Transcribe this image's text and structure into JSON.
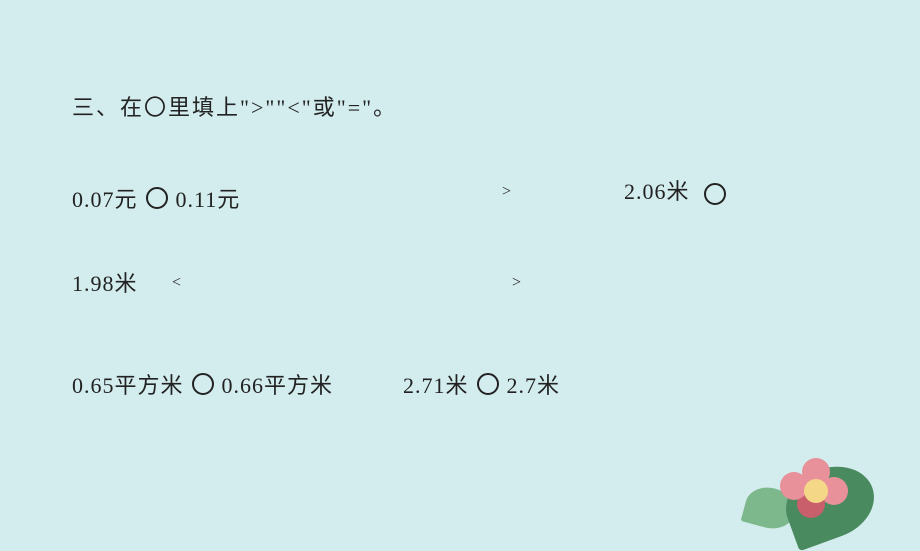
{
  "background_color": "#d3eced",
  "text_color": "#222222",
  "title": "三、在〇里填上\">\"\"<\"或\"=\"。",
  "title_fontsize": 22,
  "body_fontsize": 22,
  "answer_fontsize": 16,
  "font_family": "SimSun",
  "problems": {
    "p1": {
      "left": "0.07元",
      "right": "0.11元"
    },
    "p2": {
      "left": "2.06米",
      "right_continued": "1.98米"
    },
    "p3": {
      "left": "0.65平方米",
      "right": "0.66平方米"
    },
    "p4": {
      "left": "2.71米",
      "right": "2.7米"
    }
  },
  "answers": {
    "a1": ">",
    "a2": "<",
    "a3": ">"
  },
  "decoration": {
    "leaf_large_color": "#4a8a5f",
    "leaf_small_color": "#7cb88c",
    "flower_center_color": "#f5d788",
    "petal_light_color": "#e8919a",
    "petal_dark_color": "#c85f6a"
  }
}
